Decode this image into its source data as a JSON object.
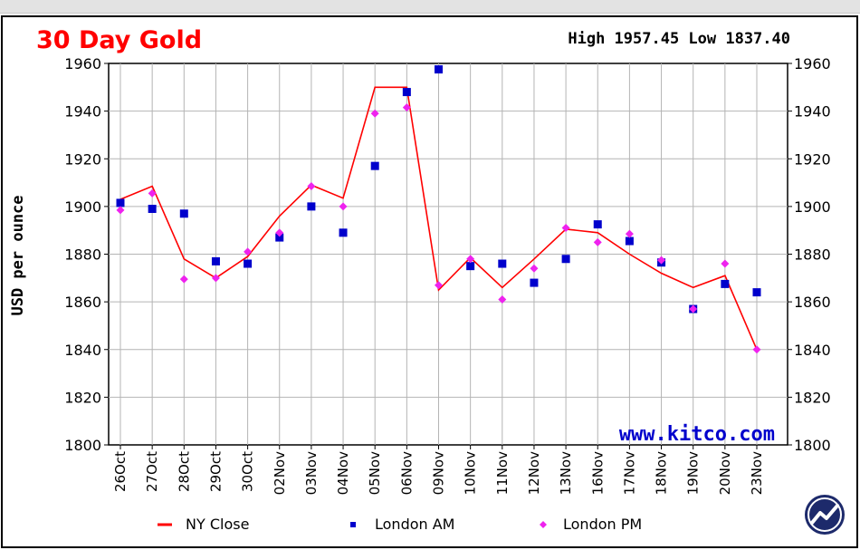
{
  "chart_data": {
    "type": "line",
    "title": "30 Day Gold",
    "high_low": "High 1957.45 Low 1837.40",
    "ylabel": "USD per ounce",
    "watermark": "www.kitco.com",
    "ylim": [
      1800,
      1960
    ],
    "yticks": [
      "1800",
      "1820",
      "1840",
      "1860",
      "1880",
      "1900",
      "1920",
      "1940",
      "1960"
    ],
    "grid": true,
    "legend_position": "bottom",
    "categories": [
      "26Oct",
      "27Oct",
      "28Oct",
      "29Oct",
      "30Oct",
      "02Nov",
      "03Nov",
      "04Nov",
      "05Nov",
      "06Nov",
      "09Nov",
      "10Nov",
      "11Nov",
      "12Nov",
      "13Nov",
      "16Nov",
      "17Nov",
      "18Nov",
      "19Nov",
      "20Nov",
      "23Nov"
    ],
    "series": [
      {
        "name": "NY Close",
        "style": "line",
        "color": "#ff0000",
        "values": [
          1903,
          1908.5,
          1878,
          1870,
          1879,
          1896,
          1909,
          1903.5,
          1950,
          1950,
          1865,
          1878.5,
          1866,
          1878,
          1890.5,
          1889,
          1880,
          1872,
          1866,
          1871,
          1840
        ]
      },
      {
        "name": "London AM",
        "style": "square",
        "color": "#0000cc",
        "values": [
          1901.5,
          1899,
          1897,
          1877,
          1876,
          1887,
          1900,
          1889,
          1917,
          1948,
          1957.5,
          1875,
          1876,
          1868,
          1878,
          1892.5,
          1885.5,
          1876.5,
          1857,
          1867.5,
          1864
        ]
      },
      {
        "name": "London PM",
        "style": "diamond",
        "color": "#ee22ee",
        "values": [
          1898.5,
          1905.5,
          1869.5,
          1870,
          1881,
          1889,
          1908.5,
          1900,
          1939,
          1941.5,
          1867,
          1878,
          1861,
          1874,
          1891,
          1885,
          1888.5,
          1877.5,
          1857,
          1876,
          1840
        ]
      }
    ]
  }
}
